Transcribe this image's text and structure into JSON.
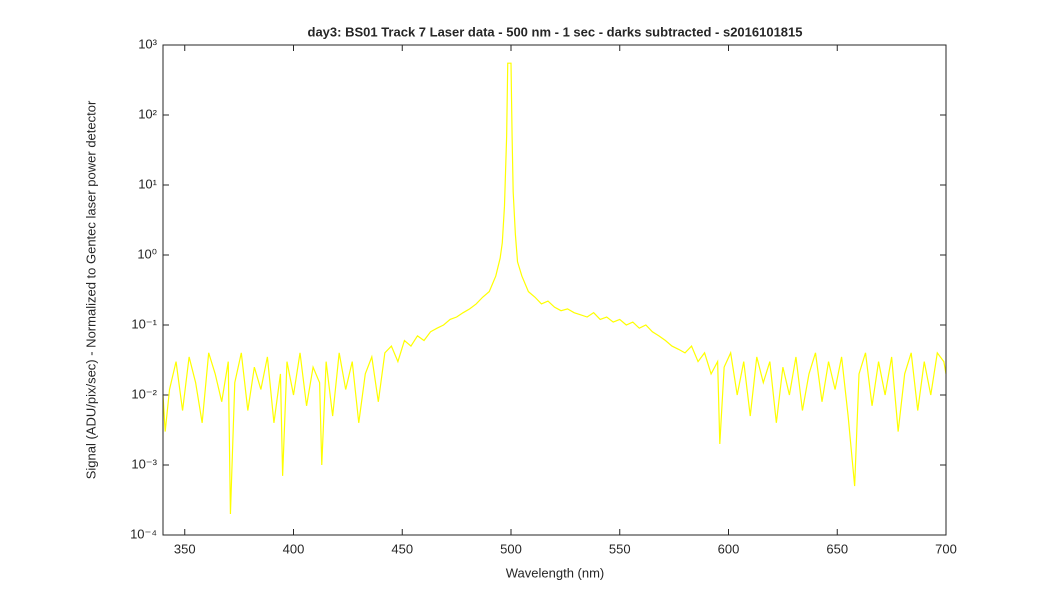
{
  "chart_data": {
    "type": "line",
    "title": "day3: BS01  Track 7 Laser data - 500 nm - 1 sec - darks subtracted - s2016101815",
    "xlabel": "Wavelength (nm)",
    "ylabel": "Signal (ADU/pix/sec) - Normalized to Gentec laser power detector",
    "yscale": "log",
    "xlim": [
      340,
      700
    ],
    "ylim": [
      0.0001,
      1000
    ],
    "xticks": [
      350,
      400,
      450,
      500,
      550,
      600,
      650,
      700
    ],
    "yticks": [
      {
        "value": 0.0001,
        "label": "10⁻⁴"
      },
      {
        "value": 0.001,
        "label": "10⁻³"
      },
      {
        "value": 0.01,
        "label": "10⁻²"
      },
      {
        "value": 0.1,
        "label": "10⁻¹"
      },
      {
        "value": 1,
        "label": "10⁰"
      },
      {
        "value": 10,
        "label": "10¹"
      },
      {
        "value": 100,
        "label": "10²"
      },
      {
        "value": 1000,
        "label": "10³"
      }
    ],
    "x": [
      340,
      341,
      343,
      346,
      349,
      352,
      355,
      358,
      361,
      364,
      367,
      370,
      371,
      373,
      376,
      379,
      382,
      385,
      388,
      391,
      394,
      395,
      397,
      400,
      403,
      406,
      409,
      412,
      413,
      415,
      418,
      421,
      424,
      427,
      430,
      433,
      436,
      439,
      442,
      445,
      448,
      451,
      454,
      457,
      460,
      463,
      466,
      469,
      472,
      475,
      478,
      481,
      484,
      487,
      490,
      493,
      495,
      496,
      497,
      498,
      498.5,
      500,
      500.5,
      501,
      502,
      503,
      505,
      508,
      511,
      514,
      517,
      520,
      523,
      526,
      529,
      532,
      535,
      538,
      541,
      544,
      547,
      550,
      553,
      556,
      559,
      562,
      565,
      568,
      571,
      574,
      577,
      580,
      583,
      586,
      589,
      592,
      595,
      596,
      598,
      601,
      604,
      607,
      610,
      613,
      616,
      619,
      622,
      625,
      628,
      631,
      634,
      637,
      640,
      643,
      646,
      649,
      652,
      655,
      658,
      660,
      663,
      666,
      669,
      672,
      675,
      678,
      681,
      684,
      687,
      690,
      693,
      696,
      699,
      700
    ],
    "series": [
      {
        "color": "#ffff00",
        "values": [
          0.01,
          0.003,
          0.012,
          0.03,
          0.006,
          0.035,
          0.015,
          0.004,
          0.04,
          0.02,
          0.008,
          0.03,
          0.0002,
          0.015,
          0.04,
          0.006,
          0.025,
          0.012,
          0.035,
          0.004,
          0.02,
          0.0007,
          0.03,
          0.01,
          0.04,
          0.007,
          0.025,
          0.015,
          0.001,
          0.03,
          0.005,
          0.04,
          0.012,
          0.03,
          0.004,
          0.02,
          0.035,
          0.008,
          0.04,
          0.05,
          0.03,
          0.06,
          0.05,
          0.07,
          0.06,
          0.08,
          0.09,
          0.1,
          0.12,
          0.13,
          0.15,
          0.17,
          0.2,
          0.25,
          0.3,
          0.5,
          0.9,
          1.5,
          5,
          50,
          550,
          550,
          50,
          8,
          2,
          0.8,
          0.5,
          0.3,
          0.25,
          0.2,
          0.22,
          0.18,
          0.16,
          0.17,
          0.15,
          0.14,
          0.13,
          0.15,
          0.12,
          0.13,
          0.11,
          0.12,
          0.1,
          0.11,
          0.09,
          0.1,
          0.08,
          0.07,
          0.06,
          0.05,
          0.045,
          0.04,
          0.05,
          0.03,
          0.04,
          0.02,
          0.03,
          0.002,
          0.025,
          0.04,
          0.01,
          0.03,
          0.005,
          0.035,
          0.015,
          0.03,
          0.004,
          0.025,
          0.01,
          0.035,
          0.006,
          0.02,
          0.04,
          0.008,
          0.03,
          0.012,
          0.035,
          0.005,
          0.0005,
          0.02,
          0.04,
          0.007,
          0.03,
          0.01,
          0.035,
          0.003,
          0.02,
          0.04,
          0.006,
          0.03,
          0.01,
          0.04,
          0.03,
          0.02
        ]
      }
    ]
  }
}
